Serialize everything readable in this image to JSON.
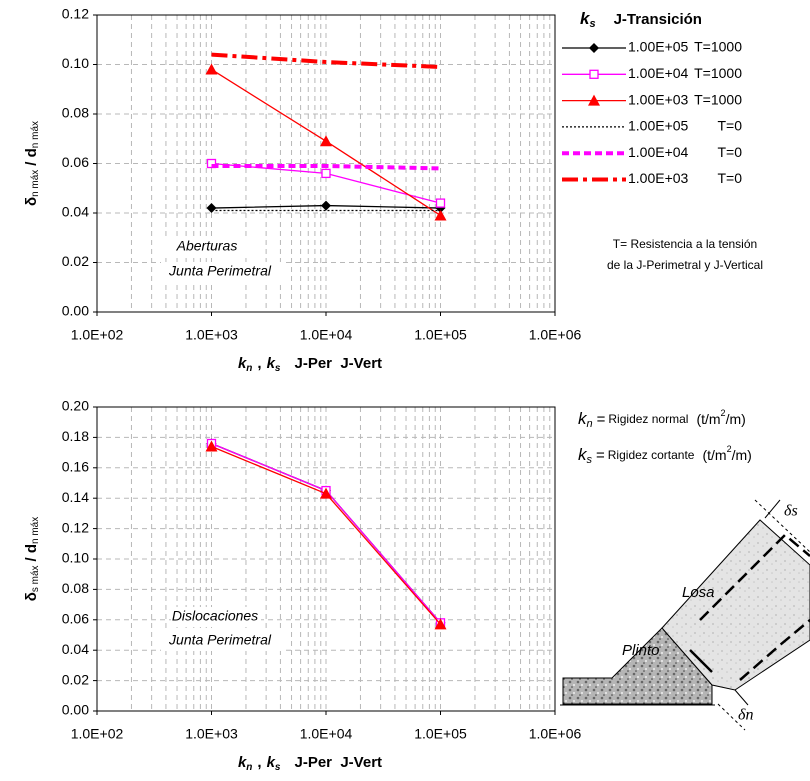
{
  "chart_data": [
    {
      "type": "line",
      "log_x": true,
      "grid": true,
      "minor_grid": true,
      "ylabel": {
        "symbol": "δ",
        "symbol_sub": "n máx",
        "divider": "/ d",
        "divider_sub": "n máx"
      },
      "xlabel": {
        "var1": "k",
        "sub1": "n",
        "sep": ",",
        "var2": "k",
        "sub2": "s",
        "text": "J-Per  J-Vert"
      },
      "x": [
        1000,
        10000,
        100000
      ],
      "xlim": [
        100,
        1000000
      ],
      "xticks": [
        {
          "value": 100,
          "label": "1.0E+02"
        },
        {
          "value": 1000,
          "label": "1.0E+03"
        },
        {
          "value": 10000,
          "label": "1.0E+04"
        },
        {
          "value": 100000,
          "label": "1.0E+05"
        },
        {
          "value": 1000000,
          "label": "1.0E+06"
        }
      ],
      "ylim": [
        0,
        0.12
      ],
      "yticks": [
        {
          "value": 0,
          "label": "0.00"
        },
        0.02,
        0.04,
        0.06,
        0.08,
        {
          "value": 0.1,
          "label": "0.10"
        },
        0.12
      ],
      "annotations": [
        "Aberturas",
        "Junta Perimetral"
      ],
      "legend_title": {
        "var": "k",
        "sub": "s",
        "text": "J-Transición"
      },
      "legend_note": [
        "T= Resistencia a la tensión",
        "de la J-Perimetral y J-Vertical"
      ],
      "series": [
        {
          "name": "1.00E+05",
          "t_label": "T=1000",
          "color": "#000000",
          "marker": "diamond",
          "dash": "solid",
          "values": [
            0.042,
            0.043,
            0.042
          ]
        },
        {
          "name": "1.00E+04",
          "t_label": "T=1000",
          "color": "#ff00ff",
          "marker": "square-open",
          "dash": "solid",
          "values": [
            0.06,
            0.056,
            0.044
          ]
        },
        {
          "name": "1.00E+03",
          "t_label": "T=1000",
          "color": "#ff0000",
          "marker": "triangle",
          "dash": "solid",
          "values": [
            0.098,
            0.069,
            0.039
          ]
        },
        {
          "name": "1.00E+05",
          "t_label": "T=0",
          "color": "#000000",
          "marker": "none",
          "dash": "dotted",
          "values": [
            0.041,
            0.041,
            0.041
          ]
        },
        {
          "name": "1.00E+04",
          "t_label": "T=0",
          "color": "#ff00ff",
          "marker": "none",
          "dash": "dashed",
          "values": [
            0.059,
            0.059,
            0.058
          ]
        },
        {
          "name": "1.00E+03",
          "t_label": "T=0",
          "color": "#ff0000",
          "marker": "none",
          "dash": "dashdot",
          "values": [
            0.104,
            0.101,
            0.099
          ]
        }
      ]
    },
    {
      "type": "line",
      "log_x": true,
      "grid": true,
      "minor_grid": true,
      "ylabel": {
        "symbol": "δ",
        "symbol_sub": "s máx",
        "divider": "/ d",
        "divider_sub": "n máx"
      },
      "xlabel": {
        "var1": "k",
        "sub1": "n",
        "sep": ",",
        "var2": "k",
        "sub2": "s",
        "text": "J-Per  J-Vert"
      },
      "x": [
        1000,
        10000,
        100000
      ],
      "xlim": [
        100,
        1000000
      ],
      "xticks": [
        {
          "value": 100,
          "label": "1.0E+02"
        },
        {
          "value": 1000,
          "label": "1.0E+03"
        },
        {
          "value": 10000,
          "label": "1.0E+04"
        },
        {
          "value": 100000,
          "label": "1.0E+05"
        },
        {
          "value": 1000000,
          "label": "1.0E+06"
        }
      ],
      "ylim": [
        0,
        0.2
      ],
      "yticks": [
        {
          "value": 0,
          "label": "0.00"
        },
        0.02,
        0.04,
        0.06,
        0.08,
        {
          "value": 0.1,
          "label": "0.10"
        },
        0.12,
        0.14,
        0.16,
        0.18,
        {
          "value": 0.2,
          "label": "0.20"
        }
      ],
      "annotations": [
        "Dislocaciones",
        "Junta Perimetral"
      ],
      "series": [
        {
          "color": "#000000",
          "marker": "diamond",
          "dash": "solid",
          "values": [
            0.176,
            0.145,
            0.058
          ]
        },
        {
          "color": "#ff00ff",
          "marker": "square-open",
          "dash": "solid",
          "values": [
            0.176,
            0.145,
            0.058
          ]
        },
        {
          "color": "#ff0000",
          "marker": "triangle",
          "dash": "solid",
          "values": [
            0.174,
            0.143,
            0.057
          ]
        }
      ]
    }
  ],
  "definitions": [
    {
      "var": "k",
      "sub": "n",
      "eq": "=",
      "text": "Rigidez normal",
      "unit": "(t/m",
      "sup": "2",
      "unit_end": "/m)"
    },
    {
      "var": "k",
      "sub": "s",
      "eq": "=",
      "text": "Rigidez cortante",
      "unit": "(t/m",
      "sup": "2",
      "unit_end": "/m)"
    }
  ],
  "diagram": {
    "slab": "Losa",
    "plinth": "Plinto",
    "ds": "δs",
    "dn": "δn"
  }
}
